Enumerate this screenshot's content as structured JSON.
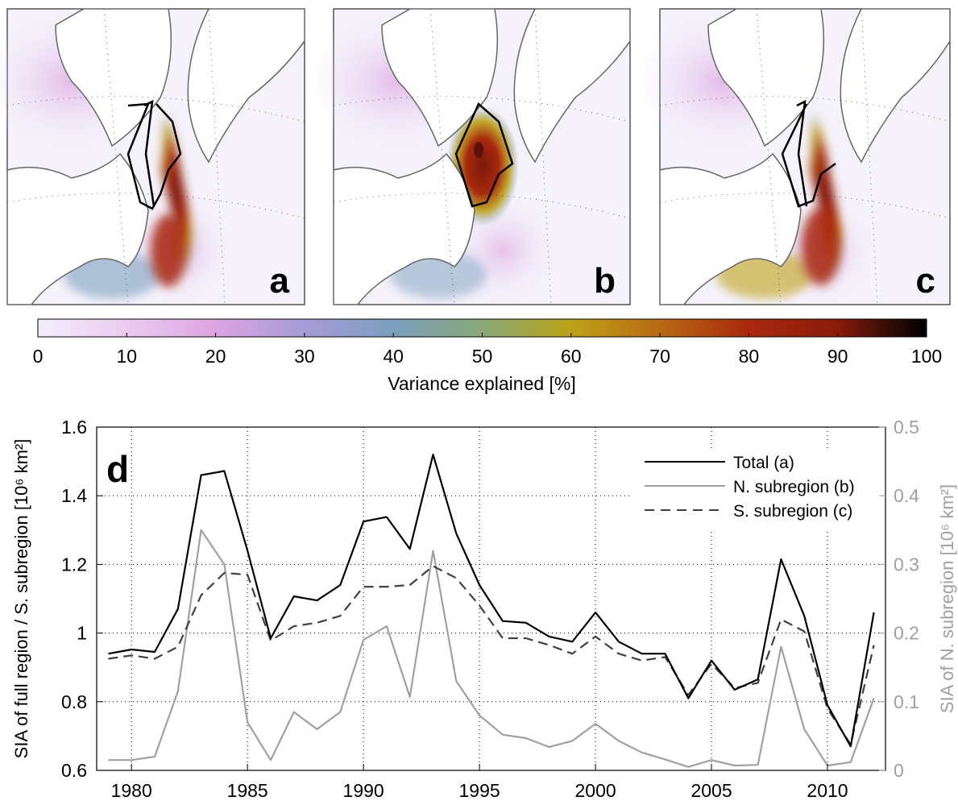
{
  "maps": {
    "panels": [
      {
        "id": "a",
        "label": "a"
      },
      {
        "id": "b",
        "label": "b"
      },
      {
        "id": "c",
        "label": "c"
      }
    ]
  },
  "colorbar": {
    "label": "Variance explained [%]",
    "min": 0,
    "max": 100,
    "ticks": [
      "0",
      "10",
      "20",
      "30",
      "40",
      "50",
      "60",
      "70",
      "80",
      "90",
      "100"
    ],
    "stops": [
      {
        "v": 0,
        "color": "#f2eefb"
      },
      {
        "v": 10,
        "color": "#eccbf0"
      },
      {
        "v": 20,
        "color": "#dca5e1"
      },
      {
        "v": 30,
        "color": "#a79bd6"
      },
      {
        "v": 40,
        "color": "#7b9fbe"
      },
      {
        "v": 50,
        "color": "#89a978"
      },
      {
        "v": 60,
        "color": "#bda318"
      },
      {
        "v": 70,
        "color": "#b86a14"
      },
      {
        "v": 80,
        "color": "#a8280d"
      },
      {
        "v": 90,
        "color": "#8a1c0c"
      },
      {
        "v": 95,
        "color": "#3b0f06"
      },
      {
        "v": 100,
        "color": "#000000"
      }
    ]
  },
  "chart_data": {
    "type": "line",
    "panel_label": "d",
    "x": [
      1979,
      1980,
      1981,
      1982,
      1983,
      1984,
      1985,
      1986,
      1987,
      1988,
      1989,
      1990,
      1991,
      1992,
      1993,
      1994,
      1995,
      1996,
      1997,
      1998,
      1999,
      2000,
      2001,
      2002,
      2003,
      2004,
      2005,
      2006,
      2007,
      2008,
      2009,
      2010,
      2011,
      2012
    ],
    "xlim": [
      1978.5,
      2012.5
    ],
    "xticks": [
      "1980",
      "1985",
      "1990",
      "1995",
      "2000",
      "2005",
      "2010"
    ],
    "ylabel": "SIA of full region / S. subregion [10⁶ km²]",
    "ylim": [
      0.6,
      1.6
    ],
    "yticks": [
      "0.6",
      "0.8",
      "1",
      "1.2",
      "1.4",
      "1.6"
    ],
    "y2label": "SIA of N. subregion [10⁶ km²]",
    "y2lim": [
      0,
      0.5
    ],
    "y2ticks": [
      "0",
      "0.1",
      "0.2",
      "0.3",
      "0.4",
      "0.5"
    ],
    "grid": true,
    "legend_position": "top-right",
    "series": [
      {
        "name": "Total (a)",
        "axis": "left",
        "color": "#000000",
        "dash": "solid",
        "values": [
          0.94,
          0.952,
          0.945,
          1.07,
          1.46,
          1.472,
          1.24,
          0.985,
          1.107,
          1.095,
          1.14,
          1.325,
          1.338,
          1.245,
          1.52,
          1.29,
          1.14,
          1.035,
          1.03,
          0.99,
          0.975,
          1.06,
          0.975,
          0.94,
          0.94,
          0.81,
          0.92,
          0.835,
          0.865,
          1.215,
          1.05,
          0.79,
          0.67,
          1.06
        ]
      },
      {
        "name": "N. subregion (b)",
        "axis": "right",
        "color": "#a0a0a0",
        "dash": "solid",
        "values": [
          0.015,
          0.015,
          0.02,
          0.115,
          0.35,
          0.3,
          0.07,
          0.015,
          0.085,
          0.06,
          0.085,
          0.19,
          0.21,
          0.107,
          0.32,
          0.13,
          0.08,
          0.052,
          0.047,
          0.034,
          0.043,
          0.068,
          0.043,
          0.026,
          0.016,
          0.005,
          0.015,
          0.007,
          0.008,
          0.18,
          0.06,
          0.007,
          0.012,
          0.105
        ]
      },
      {
        "name": "S. subregion (c)",
        "axis": "left",
        "color": "#404040",
        "dash": "dashed",
        "values": [
          0.925,
          0.935,
          0.925,
          0.96,
          1.11,
          1.175,
          1.17,
          0.978,
          1.02,
          1.03,
          1.05,
          1.135,
          1.135,
          1.14,
          1.195,
          1.16,
          1.08,
          0.985,
          0.985,
          0.965,
          0.94,
          0.99,
          0.94,
          0.92,
          0.93,
          0.82,
          0.91,
          0.84,
          0.855,
          1.04,
          1.005,
          0.78,
          0.675,
          0.965
        ]
      }
    ]
  }
}
